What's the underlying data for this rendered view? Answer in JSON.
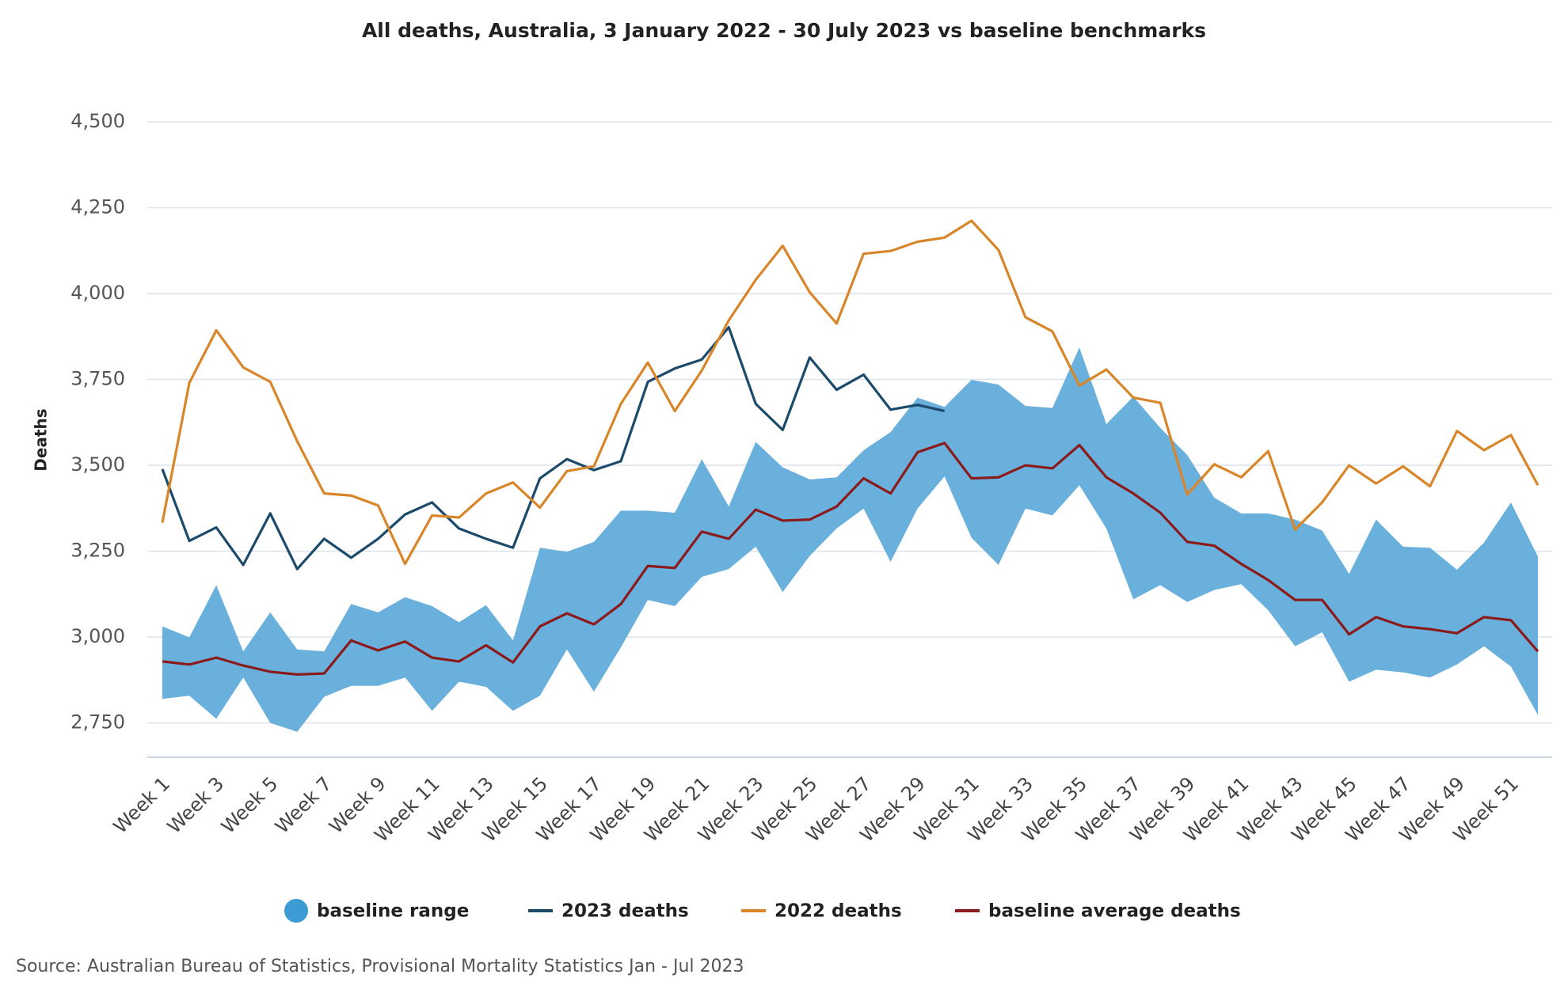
{
  "chart_data": {
    "type": "line",
    "title": "All deaths, Australia, 3 January 2022 - 30 July 2023 vs baseline benchmarks",
    "y_label": "Deaths",
    "source": "Source: Australian Bureau of Statistics, Provisional Mortality Statistics Jan - Jul 2023",
    "categories": [
      "Week 1",
      null,
      "Week 3",
      null,
      "Week 5",
      null,
      "Week 7",
      null,
      "Week 9",
      null,
      "Week 11",
      null,
      "Week 13",
      null,
      "Week 15",
      null,
      "Week 17",
      null,
      "Week 19",
      null,
      "Week 21",
      null,
      "Week 23",
      null,
      "Week 25",
      null,
      "Week 27",
      null,
      "Week 29",
      null,
      "Week 31",
      null,
      "Week 33",
      null,
      "Week 35",
      null,
      "Week 37",
      null,
      "Week 39",
      null,
      "Week 41",
      null,
      "Week 43",
      null,
      "Week 45",
      null,
      "Week 47",
      null,
      "Week 49",
      null,
      "Week 51",
      null
    ],
    "ylim": [
      2650,
      4500
    ],
    "yticks": [
      {
        "value": 2750,
        "label": "2,750"
      },
      {
        "value": 3000,
        "label": "3,000"
      },
      {
        "value": 3250,
        "label": "3,250"
      },
      {
        "value": 3500,
        "label": "3,500"
      },
      {
        "value": 3750,
        "label": "3,750"
      },
      {
        "value": 4000,
        "label": "4,000"
      },
      {
        "value": 4250,
        "label": "4,250"
      },
      {
        "value": 4500,
        "label": "4,500"
      }
    ],
    "grid": true,
    "series": [
      {
        "name": "baseline range",
        "type": "range",
        "color": "#6ab0dd",
        "low": [
          2820,
          2829,
          2762,
          2882,
          2750,
          2724,
          2826,
          2858,
          2858,
          2882,
          2785,
          2870,
          2855,
          2785,
          2829,
          2964,
          2841,
          2970,
          3108,
          3090,
          3175,
          3198,
          3263,
          3131,
          3236,
          3316,
          3374,
          3219,
          3374,
          3468,
          3289,
          3210,
          3374,
          3354,
          3442,
          3316,
          3110,
          3151,
          3102,
          3137,
          3154,
          3078,
          2973,
          3014,
          2870,
          2905,
          2897,
          2882,
          2920,
          2973,
          2914,
          2773
        ],
        "high": [
          3031,
          2999,
          3151,
          2958,
          3072,
          2964,
          2958,
          3096,
          3072,
          3116,
          3090,
          3043,
          3093,
          2990,
          3260,
          3248,
          3277,
          3368,
          3368,
          3362,
          3518,
          3380,
          3568,
          3494,
          3459,
          3465,
          3544,
          3597,
          3697,
          3670,
          3749,
          3735,
          3673,
          3667,
          3843,
          3620,
          3700,
          3609,
          3530,
          3406,
          3360,
          3360,
          3342,
          3310,
          3184,
          3342,
          3263,
          3260,
          3196,
          3275,
          3392,
          3234
        ]
      },
      {
        "name": "2023 deaths",
        "color": "#1b4a6b",
        "values": [
          3489,
          3280,
          3319,
          3210,
          3360,
          3198,
          3286,
          3231,
          3286,
          3357,
          3392,
          3316,
          3286,
          3260,
          3462,
          3518,
          3486,
          3512,
          3743,
          3782,
          3808,
          3902,
          3679,
          3603,
          3814,
          3720,
          3764,
          3662,
          3676,
          3658,
          null,
          null,
          null,
          null,
          null,
          null,
          null,
          null,
          null,
          null,
          null,
          null,
          null,
          null,
          null,
          null,
          null,
          null,
          null,
          null,
          null,
          null
        ]
      },
      {
        "name": "2022 deaths",
        "color": "#d9862a",
        "values": [
          3333,
          3740,
          3893,
          3785,
          3743,
          3570,
          3418,
          3412,
          3383,
          3213,
          3354,
          3348,
          3418,
          3450,
          3377,
          3483,
          3497,
          3679,
          3799,
          3658,
          3776,
          3922,
          4040,
          4139,
          4004,
          3913,
          4116,
          4124,
          4151,
          4163,
          4212,
          4127,
          3931,
          3890,
          3732,
          3779,
          3697,
          3682,
          3415,
          3503,
          3465,
          3541,
          3313,
          3392,
          3500,
          3447,
          3497,
          3439,
          3600,
          3544,
          3588,
          3442
        ]
      },
      {
        "name": "baseline average deaths",
        "color": "#8b1a1a",
        "values": [
          2929,
          2920,
          2940,
          2917,
          2899,
          2891,
          2894,
          2990,
          2961,
          2987,
          2940,
          2929,
          2976,
          2926,
          3031,
          3069,
          3037,
          3096,
          3207,
          3201,
          3307,
          3286,
          3371,
          3339,
          3342,
          3380,
          3462,
          3418,
          3538,
          3565,
          3462,
          3465,
          3500,
          3491,
          3559,
          3465,
          3418,
          3362,
          3277,
          3266,
          3213,
          3166,
          3108,
          3108,
          3008,
          3058,
          3031,
          3023,
          3011,
          3058,
          3049,
          2958
        ]
      }
    ]
  }
}
